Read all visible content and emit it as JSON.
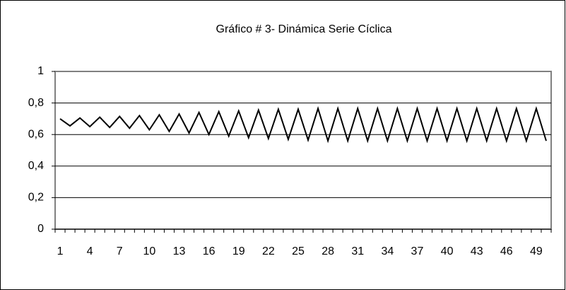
{
  "chart_data": {
    "type": "line",
    "title": "Gráfico # 3- Dinámica Serie Cíclica",
    "categories": [
      "1",
      null,
      null,
      "4",
      null,
      null,
      "7",
      null,
      null,
      "10",
      null,
      null,
      "13",
      null,
      null,
      "16",
      null,
      null,
      "19",
      null,
      null,
      "22",
      null,
      null,
      "25",
      null,
      null,
      "28",
      null,
      null,
      "31",
      null,
      null,
      "34",
      null,
      null,
      "37",
      null,
      null,
      "40",
      null,
      null,
      "43",
      null,
      null,
      "46",
      null,
      null,
      "49",
      null
    ],
    "values": [
      0.7,
      0.655,
      0.705,
      0.65,
      0.71,
      0.645,
      0.715,
      0.64,
      0.72,
      0.63,
      0.725,
      0.62,
      0.73,
      0.61,
      0.74,
      0.6,
      0.745,
      0.59,
      0.75,
      0.58,
      0.755,
      0.575,
      0.76,
      0.57,
      0.76,
      0.565,
      0.765,
      0.56,
      0.765,
      0.56,
      0.765,
      0.56,
      0.765,
      0.56,
      0.765,
      0.56,
      0.765,
      0.56,
      0.765,
      0.56,
      0.765,
      0.56,
      0.765,
      0.56,
      0.765,
      0.56,
      0.765,
      0.56,
      0.765,
      0.56
    ],
    "color": "#000000",
    "ylim": [
      0,
      1
    ],
    "yticks": [
      0,
      {
        "value": 0.2,
        "label": "0,2"
      },
      {
        "value": 0.4,
        "label": "0,4"
      },
      {
        "value": 0.6,
        "label": "0,6"
      },
      {
        "value": 0.8,
        "label": "0,8"
      },
      1
    ],
    "grid": true
  }
}
